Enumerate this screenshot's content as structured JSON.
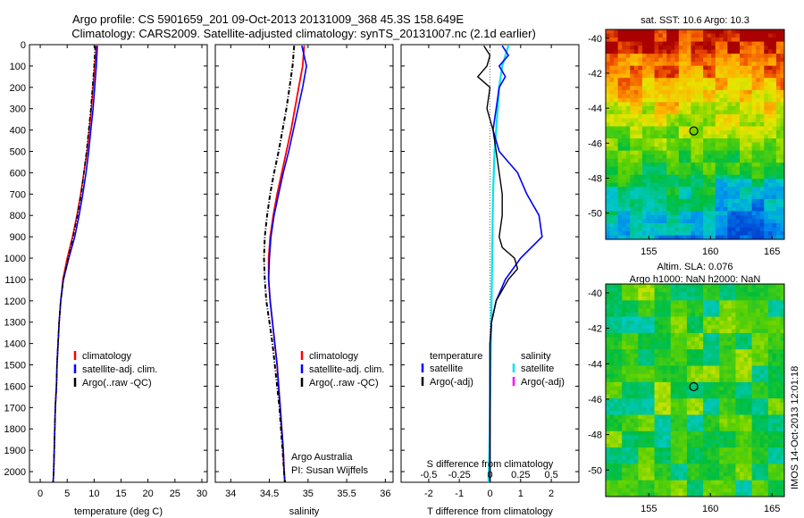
{
  "header": {
    "title_line1": "Argo profile: CS 5901659_201 09-Oct-2013 20131009_368 45.3S 158.649E",
    "title_line2": "Climatology: CARS2009. Satellite-adjusted climatology: synTS_20131007.nc (2.1d earlier)"
  },
  "colors": {
    "climatology": "#ff0000",
    "satellite": "#0000ff",
    "argo": "#000000",
    "sal_satellite": "#00e5ee",
    "sal_argo": "#ff00ff"
  },
  "chart_data": [
    {
      "type": "line",
      "xlabel": "temperature (deg C)",
      "xlim": [
        -2,
        31
      ],
      "xticks": [
        0,
        5,
        10,
        15,
        20,
        25,
        30
      ],
      "ylim": [
        0,
        2050
      ],
      "yticks": [
        0,
        100,
        200,
        300,
        400,
        500,
        600,
        700,
        800,
        900,
        1000,
        1100,
        1200,
        1300,
        1400,
        1500,
        1600,
        1700,
        1800,
        1900,
        2000
      ],
      "y_reversed": true,
      "legend": [
        "climatology",
        "satellite-adj. clim.",
        "Argo(..raw -QC)"
      ],
      "series": [
        {
          "name": "climatology",
          "depth": [
            5,
            100,
            200,
            300,
            400,
            500,
            600,
            700,
            800,
            900,
            1000,
            1100,
            1200,
            1300,
            1400,
            1500,
            1600,
            1700,
            1800,
            1900,
            2000,
            2050
          ],
          "values": [
            10.4,
            10.1,
            9.8,
            9.5,
            9.1,
            8.7,
            8.1,
            7.5,
            6.8,
            6.0,
            5.0,
            4.2,
            3.8,
            3.5,
            3.3,
            3.1,
            3.0,
            2.8,
            2.7,
            2.6,
            2.5,
            2.4
          ]
        },
        {
          "name": "satellite-adj. clim.",
          "depth": [
            5,
            100,
            200,
            300,
            400,
            500,
            600,
            700,
            800,
            900,
            1000,
            1100,
            1200,
            1300,
            1400,
            1500,
            1600,
            1700,
            1800,
            1900,
            2000,
            2050
          ],
          "values": [
            10.6,
            10.4,
            10.1,
            9.8,
            9.4,
            9.0,
            8.5,
            7.9,
            7.2,
            6.4,
            5.3,
            4.3,
            3.8,
            3.5,
            3.3,
            3.1,
            3.0,
            2.8,
            2.7,
            2.6,
            2.5,
            2.4
          ]
        },
        {
          "name": "Argo(..raw -QC)",
          "depth": [
            5,
            100,
            200,
            300,
            400,
            500,
            600,
            700,
            800,
            900,
            1000,
            1100,
            1200,
            1300,
            1400,
            1500,
            1600,
            1700,
            1800,
            1900,
            2000,
            2050
          ],
          "values": [
            10.2,
            10.0,
            9.7,
            9.4,
            9.0,
            8.6,
            8.1,
            7.6,
            6.9,
            6.1,
            5.2,
            4.3,
            3.8,
            3.5,
            3.3,
            3.1,
            3.0,
            2.8,
            2.7,
            2.6,
            2.5,
            2.4
          ]
        }
      ]
    },
    {
      "type": "line",
      "xlabel": "salinity",
      "xlim": [
        33.8,
        36.1
      ],
      "xticks": [
        34,
        34.5,
        35,
        35.5,
        36
      ],
      "xticklabels": [
        "34",
        "34.5",
        "35",
        "35.5",
        "36"
      ],
      "ylim": [
        0,
        2050
      ],
      "y_reversed": true,
      "legend": [
        "climatology",
        "satellite-adj. clim.",
        "Argo(..raw -QC)"
      ],
      "series": [
        {
          "name": "climatology",
          "depth": [
            5,
            100,
            200,
            300,
            400,
            500,
            600,
            700,
            800,
            900,
            1000,
            1100,
            1200,
            1300,
            1400,
            1500,
            1600,
            1700,
            1800,
            1900,
            2000,
            2050
          ],
          "values": [
            34.95,
            34.93,
            34.88,
            34.83,
            34.78,
            34.72,
            34.66,
            34.6,
            34.55,
            34.51,
            34.49,
            34.49,
            34.51,
            34.54,
            34.57,
            34.6,
            34.62,
            34.64,
            34.66,
            34.68,
            34.69,
            34.7
          ]
        },
        {
          "name": "satellite-adj. clim.",
          "depth": [
            5,
            100,
            200,
            300,
            400,
            500,
            600,
            700,
            800,
            900,
            1000,
            1100,
            1200,
            1300,
            1400,
            1500,
            1600,
            1700,
            1800,
            1900,
            2000,
            2050
          ],
          "values": [
            34.92,
            34.98,
            34.93,
            34.87,
            34.81,
            34.75,
            34.68,
            34.62,
            34.56,
            34.52,
            34.5,
            34.49,
            34.51,
            34.54,
            34.57,
            34.6,
            34.62,
            34.64,
            34.66,
            34.68,
            34.69,
            34.7
          ]
        },
        {
          "name": "Argo(..raw -QC)",
          "depth": [
            5,
            100,
            200,
            300,
            400,
            500,
            600,
            700,
            800,
            900,
            1000,
            1100,
            1200,
            1300,
            1400,
            1500,
            1600,
            1700,
            1800,
            1900,
            2000,
            2050
          ],
          "values": [
            34.82,
            34.8,
            34.76,
            34.72,
            34.67,
            34.62,
            34.56,
            34.51,
            34.47,
            34.44,
            34.43,
            34.44,
            34.46,
            34.5,
            34.54,
            34.57,
            34.6,
            34.63,
            34.65,
            34.67,
            34.69,
            34.7
          ]
        }
      ]
    },
    {
      "type": "line",
      "xlabel": "T difference from climatology",
      "xlim": [
        -2.9,
        2.9
      ],
      "xticks": [
        -2,
        -1,
        0,
        1,
        2
      ],
      "x2label": "S difference from climatology",
      "x2ticks": [
        "-0.5",
        "-0.25",
        "0",
        "0.25",
        "0.5"
      ],
      "ylim": [
        0,
        2050
      ],
      "y_reversed": true,
      "legend_headers": [
        "temperature",
        "salinity"
      ],
      "legend": [
        "satellite",
        "Argo(-adj)",
        "satellite",
        "Argo(-adj)"
      ],
      "series": [
        {
          "name": "satellite",
          "depth": [
            5,
            50,
            100,
            150,
            200,
            300,
            400,
            500,
            600,
            700,
            800,
            900,
            1000,
            1100,
            1200,
            1300,
            1400,
            1500,
            1700,
            2000,
            2050
          ],
          "values": [
            0.4,
            0.6,
            0.3,
            0.5,
            0.3,
            0.2,
            0.1,
            0.3,
            0.9,
            1.2,
            1.6,
            1.7,
            1.0,
            0.5,
            0.2,
            0.05,
            0.0,
            0.0,
            0.0,
            0.0,
            0.0
          ]
        },
        {
          "name": "Argo(-adj)",
          "depth": [
            5,
            50,
            100,
            150,
            200,
            300,
            400,
            500,
            600,
            700,
            800,
            900,
            950,
            1000,
            1050,
            1100,
            1200,
            1300,
            1400,
            1500,
            1700,
            2000,
            2050
          ],
          "values": [
            -0.2,
            0.0,
            -0.1,
            -0.4,
            0.0,
            -0.1,
            0.1,
            0.2,
            0.3,
            0.4,
            0.4,
            0.3,
            0.4,
            0.8,
            0.9,
            0.6,
            0.2,
            0.05,
            0.0,
            0.0,
            0.0,
            0.0,
            0.0
          ]
        },
        {
          "name": "sal satellite",
          "depth": [
            5,
            100,
            200,
            300,
            400,
            500,
            700,
            900,
            1100,
            1300,
            1500,
            1700,
            1900,
            2050
          ],
          "values": [
            0.6,
            0.4,
            0.3,
            0.25,
            0.2,
            0.15,
            0.1,
            0.08,
            0.06,
            0.04,
            0.02,
            0.0,
            -0.02,
            -0.05
          ]
        },
        {
          "name": "sal Argo(-adj)",
          "depth": [],
          "values": []
        }
      ]
    },
    {
      "type": "heatmap",
      "title": "sat. SST: 10.6 Argo: 10.3",
      "xlim": [
        151.5,
        166
      ],
      "ylim": [
        -51.5,
        -39.5
      ],
      "xticks": [
        155,
        160,
        165
      ],
      "yticks": [
        -40,
        -42,
        -44,
        -46,
        -48,
        -50
      ],
      "marker": {
        "lon": 158.649,
        "lat": -45.3
      }
    },
    {
      "type": "heatmap",
      "title_line1": "Altim. SLA: 0.076",
      "title_line2": "Argo h1000: NaN h2000: NaN",
      "xlim": [
        151.5,
        166
      ],
      "ylim": [
        -51.5,
        -39.5
      ],
      "xticks": [
        155,
        160,
        165
      ],
      "yticks": [
        -40,
        -42,
        -44,
        -46,
        -48,
        -50
      ],
      "marker": {
        "lon": 158.649,
        "lat": -45.3
      }
    }
  ],
  "annotations": {
    "sal_credit_1": "Argo Australia",
    "sal_credit_2": "PI: Susan Wijffels",
    "imos_stamp": "IMOS 14-Oct-2013 12:01:18"
  }
}
